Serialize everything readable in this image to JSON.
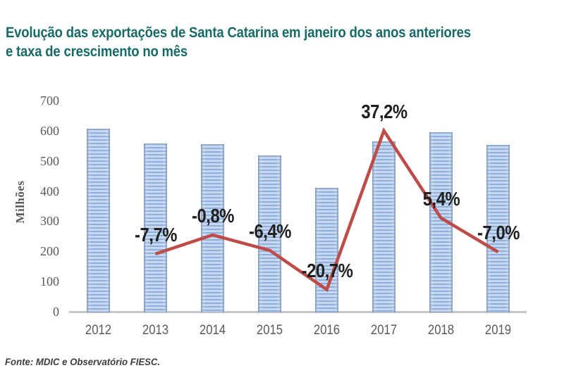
{
  "title": {
    "line1": "Evolução das exportações de Santa Catarina em janeiro dos anos anteriores",
    "line2": "e taxa de crescimento no mês"
  },
  "source": "Fonte: MDIC e Observatório FIESC.",
  "chart_data": {
    "type": "combo",
    "title": "Evolução das exportações de Santa Catarina em janeiro dos anos anteriores e taxa de crescimento no mês",
    "categories": [
      "2012",
      "2013",
      "2014",
      "2015",
      "2016",
      "2017",
      "2018",
      "2019"
    ],
    "series": [
      {
        "name": "exportacoes",
        "type": "bar",
        "unit": "US$ milhões",
        "values": [
          608,
          561,
          557,
          521,
          413,
          567,
          597,
          555
        ]
      },
      {
        "name": "taxa_de_crescimento",
        "type": "line",
        "unit": "%",
        "values": [
          null,
          -7.7,
          -0.8,
          -6.4,
          -20.7,
          37.2,
          5.4,
          -7.0
        ],
        "labels": [
          "",
          "-7,7%",
          "-0,8%",
          "-6,4%",
          "-20,7%",
          "37,2%",
          "5,4%",
          "-7,0%"
        ]
      }
    ],
    "ylabel": "Milhões",
    "yticks": [
      0,
      100,
      200,
      300,
      400,
      500,
      600,
      700
    ],
    "ylim": [
      0,
      700
    ],
    "grid": false,
    "legend": "none"
  },
  "colors": {
    "title_color": "#176A66",
    "bar_stripe_dark": "#8FB0DE",
    "bar_stripe_light": "#C7D8EE",
    "line": "#BE4B48",
    "axis_text": "#595959",
    "data_label": "#1F1F1F",
    "baseline": "#C6C6C6",
    "source_text": "#3D3D3D"
  }
}
